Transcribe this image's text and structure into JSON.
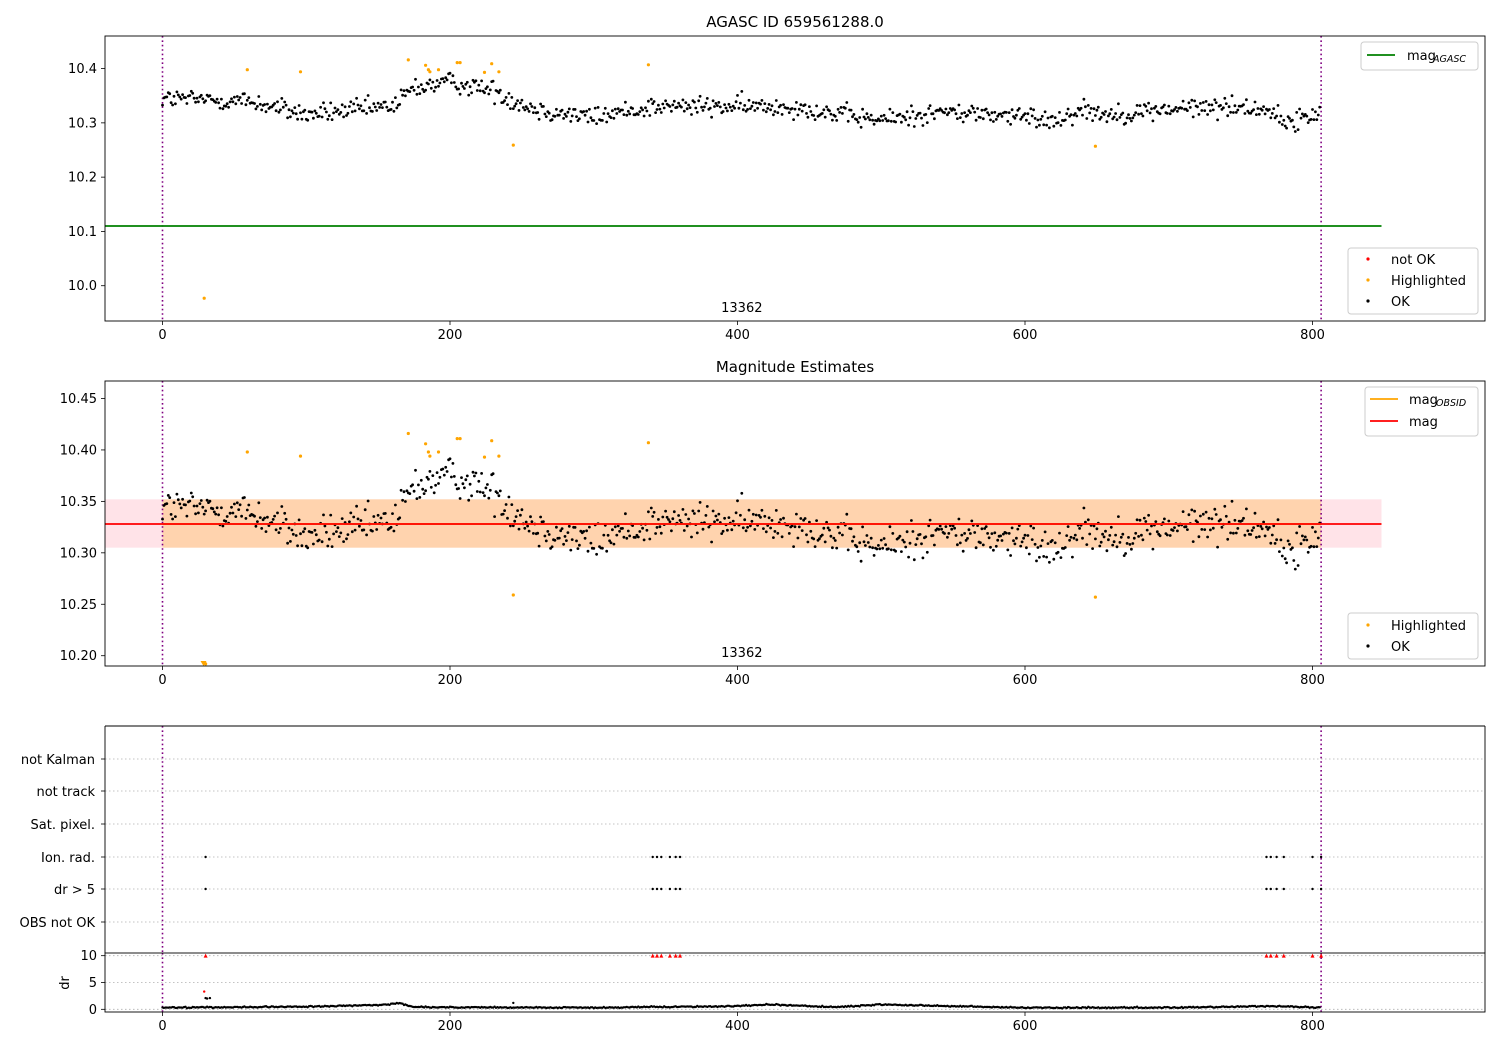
{
  "chart_data": [
    {
      "type": "scatter",
      "title": "AGASC ID 659561288.0",
      "xlim": [
        -40,
        920
      ],
      "ylim": [
        9.935,
        10.46
      ],
      "yticks": [
        10.0,
        10.1,
        10.2,
        10.3,
        10.4
      ],
      "ytick_labels": [
        "10.0",
        "10.1",
        "10.2",
        "10.3",
        "10.4"
      ],
      "xticks": [
        0,
        200,
        400,
        600,
        800
      ],
      "xtick_labels": [
        "0",
        "200",
        "400",
        "600",
        "800"
      ],
      "obs_label": "13362",
      "obs_label_x": 403,
      "obs_boundaries": [
        0,
        806
      ],
      "lines": [
        {
          "name": "mag_AGASC",
          "label_main": "mag",
          "label_sub": "AGASC",
          "y": 10.11,
          "x0": -40,
          "x1": 848,
          "color": "#008000"
        }
      ],
      "series_ok": {
        "name": "OK",
        "color": "#000000",
        "n": 806,
        "baseline": [
          [
            0,
            10.345
          ],
          [
            60,
            10.34
          ],
          [
            100,
            10.315
          ],
          [
            160,
            10.33
          ],
          [
            175,
            10.365
          ],
          [
            200,
            10.375
          ],
          [
            230,
            10.36
          ],
          [
            245,
            10.34
          ],
          [
            260,
            10.325
          ],
          [
            300,
            10.31
          ],
          [
            340,
            10.33
          ],
          [
            400,
            10.33
          ],
          [
            440,
            10.33
          ],
          [
            470,
            10.315
          ],
          [
            500,
            10.305
          ],
          [
            540,
            10.32
          ],
          [
            580,
            10.315
          ],
          [
            620,
            10.305
          ],
          [
            640,
            10.325
          ],
          [
            660,
            10.315
          ],
          [
            700,
            10.325
          ],
          [
            740,
            10.33
          ],
          [
            770,
            10.325
          ],
          [
            780,
            10.3
          ],
          [
            806,
            10.315
          ]
        ],
        "noise": 0.018
      },
      "series_highlighted": {
        "name": "Highlighted",
        "color": "#ffa500",
        "points": [
          [
            29,
            9.977
          ],
          [
            59,
            10.398
          ],
          [
            96,
            10.394
          ],
          [
            171,
            10.416
          ],
          [
            183,
            10.406
          ],
          [
            185,
            10.398
          ],
          [
            186,
            10.394
          ],
          [
            192,
            10.398
          ],
          [
            205,
            10.411
          ],
          [
            207,
            10.411
          ],
          [
            224,
            10.393
          ],
          [
            229,
            10.409
          ],
          [
            234,
            10.394
          ],
          [
            244,
            10.259
          ],
          [
            338,
            10.407
          ],
          [
            649,
            10.257
          ]
        ]
      },
      "series_not_ok": {
        "name": "not OK",
        "color": "#ff0000",
        "points": []
      },
      "legend_lines_loc": "upper right",
      "legend_points_loc": "lower right",
      "legend_points": [
        "not OK",
        "Highlighted",
        "OK"
      ]
    },
    {
      "type": "scatter",
      "title": "Magnitude Estimates",
      "xlim": [
        -40,
        920
      ],
      "ylim": [
        10.19,
        10.467
      ],
      "yticks": [
        10.2,
        10.25,
        10.3,
        10.35,
        10.4,
        10.45
      ],
      "ytick_labels": [
        "10.20",
        "10.25",
        "10.30",
        "10.35",
        "10.40",
        "10.45"
      ],
      "xticks": [
        0,
        200,
        400,
        600,
        800
      ],
      "xtick_labels": [
        "0",
        "200",
        "400",
        "600",
        "800"
      ],
      "obs_label": "13362",
      "obs_label_x": 403,
      "obs_boundaries": [
        0,
        806
      ],
      "bands": [
        {
          "name": "mag band",
          "y0": 10.305,
          "y1": 10.352,
          "x0": -40,
          "x1": 848,
          "color": "#ffc0cb",
          "opacity": 0.45
        },
        {
          "name": "mag_OBSID band",
          "y0": 10.305,
          "y1": 10.352,
          "x0": 0,
          "x1": 806,
          "color": "#ffa500",
          "opacity": 0.25
        }
      ],
      "lines": [
        {
          "name": "mag_OBSID",
          "label_main": "mag",
          "label_sub": "OBSID",
          "y": 10.328,
          "x0": 0,
          "x1": 806,
          "color": "#ffa500"
        },
        {
          "name": "mag",
          "label_main": "mag",
          "label_sub": "",
          "y": 10.328,
          "x0": -40,
          "x1": 848,
          "color": "#ff0000"
        }
      ],
      "series_ok": {
        "name": "OK",
        "color": "#000000",
        "n": 806,
        "baseline": [
          [
            0,
            10.345
          ],
          [
            60,
            10.34
          ],
          [
            100,
            10.315
          ],
          [
            160,
            10.33
          ],
          [
            175,
            10.365
          ],
          [
            200,
            10.375
          ],
          [
            230,
            10.36
          ],
          [
            245,
            10.34
          ],
          [
            260,
            10.325
          ],
          [
            300,
            10.31
          ],
          [
            340,
            10.33
          ],
          [
            400,
            10.33
          ],
          [
            440,
            10.33
          ],
          [
            470,
            10.315
          ],
          [
            500,
            10.305
          ],
          [
            540,
            10.32
          ],
          [
            580,
            10.315
          ],
          [
            620,
            10.305
          ],
          [
            640,
            10.325
          ],
          [
            660,
            10.315
          ],
          [
            700,
            10.325
          ],
          [
            740,
            10.33
          ],
          [
            770,
            10.325
          ],
          [
            780,
            10.3
          ],
          [
            806,
            10.315
          ]
        ],
        "noise": 0.018
      },
      "series_highlighted": {
        "name": "Highlighted",
        "color": "#ffa500",
        "points": [
          [
            29,
            10.193
          ],
          [
            30,
            10.192
          ],
          [
            59,
            10.398
          ],
          [
            96,
            10.394
          ],
          [
            171,
            10.416
          ],
          [
            183,
            10.406
          ],
          [
            185,
            10.398
          ],
          [
            186,
            10.394
          ],
          [
            192,
            10.398
          ],
          [
            205,
            10.411
          ],
          [
            207,
            10.411
          ],
          [
            224,
            10.393
          ],
          [
            229,
            10.409
          ],
          [
            234,
            10.394
          ],
          [
            244,
            10.259
          ],
          [
            338,
            10.407
          ],
          [
            649,
            10.257
          ]
        ]
      },
      "legend_lines_loc": "upper right",
      "legend_points_loc": "lower right",
      "legend_points": [
        "Highlighted",
        "OK"
      ]
    },
    {
      "type": "scatter",
      "title": "",
      "xlim": [
        -40,
        920
      ],
      "categories": [
        "not Kalman",
        "not track",
        "Sat. pixel.",
        "Ion. rad.",
        "dr > 5",
        "OBS not OK"
      ],
      "obs_boundaries": [
        0,
        806
      ],
      "flag_points": {
        "Ion. rad.": [
          30,
          341,
          344,
          347,
          353,
          357,
          360,
          768,
          771,
          775,
          780,
          800,
          806
        ],
        "dr > 5": [
          30,
          341,
          344,
          347,
          353,
          357,
          360,
          768,
          771,
          775,
          780,
          800,
          806
        ]
      }
    },
    {
      "type": "scatter",
      "title": "",
      "ylabel": "dr",
      "xlim": [
        -40,
        920
      ],
      "ylim": [
        -0.5,
        10.5
      ],
      "yticks": [
        0,
        5,
        10
      ],
      "ytick_labels": [
        "0",
        "5",
        "10"
      ],
      "xticks": [
        0,
        200,
        400,
        600,
        800
      ],
      "xtick_labels": [
        "0",
        "200",
        "400",
        "600",
        "800"
      ],
      "obs_boundaries": [
        0,
        806
      ],
      "dr_series": {
        "name": "dr",
        "color": "#000000",
        "n": 806,
        "baseline": [
          [
            0,
            0.3
          ],
          [
            100,
            0.5
          ],
          [
            150,
            0.8
          ],
          [
            165,
            1.1
          ],
          [
            175,
            0.4
          ],
          [
            300,
            0.3
          ],
          [
            400,
            0.6
          ],
          [
            420,
            0.9
          ],
          [
            470,
            0.4
          ],
          [
            500,
            0.9
          ],
          [
            560,
            0.5
          ],
          [
            600,
            0.3
          ],
          [
            700,
            0.3
          ],
          [
            770,
            0.6
          ],
          [
            806,
            0.3
          ]
        ]
      },
      "dr_extra": [
        [
          29,
          3.3
        ],
        [
          30,
          2.1
        ],
        [
          31,
          2.0
        ],
        [
          33,
          2.1
        ],
        [
          244,
          1.2
        ]
      ],
      "dr_flagged": {
        "name": "dr flagged",
        "color": "#ff0000",
        "y": 10,
        "x": [
          30,
          341,
          344,
          347,
          353,
          357,
          360,
          768,
          771,
          775,
          780,
          800,
          806
        ]
      }
    }
  ]
}
